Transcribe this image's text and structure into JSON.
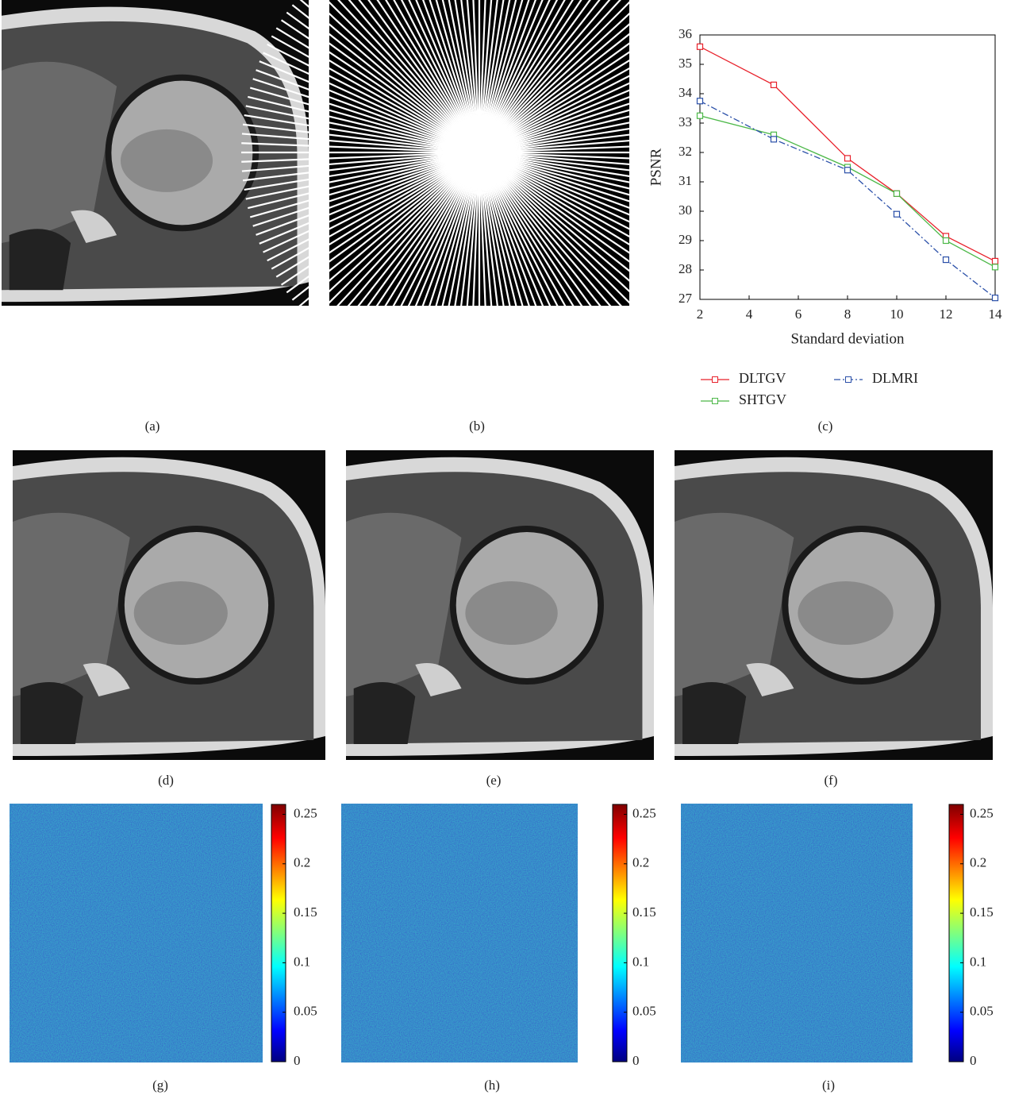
{
  "panel_labels": [
    "(a)",
    "(b)",
    "(c)",
    "(d)",
    "(e)",
    "(f)",
    "(g)",
    "(h)",
    "(i)"
  ],
  "chart_data": {
    "type": "line",
    "xlabel": "Standard deviation",
    "ylabel": "PSNR",
    "x": [
      2,
      5,
      8,
      10,
      12,
      14
    ],
    "series": [
      {
        "name": "DLTGV",
        "color": "#e8202a",
        "linestyle": "solid",
        "values": [
          35.6,
          34.3,
          31.8,
          30.6,
          29.15,
          28.3
        ]
      },
      {
        "name": "SHTGV",
        "color": "#4cb848",
        "linestyle": "solid",
        "values": [
          33.25,
          32.6,
          31.5,
          30.6,
          29.0,
          28.1
        ]
      },
      {
        "name": "DLMRI",
        "color": "#2a4fa8",
        "linestyle": "dashdot",
        "values": [
          33.75,
          32.45,
          31.4,
          29.9,
          28.35,
          27.05
        ]
      }
    ],
    "xlim": [
      2,
      14
    ],
    "xticks": [
      2,
      4,
      6,
      8,
      10,
      12,
      14
    ],
    "ylim": [
      27,
      36
    ],
    "yticks": [
      27,
      28,
      29,
      30,
      31,
      32,
      33,
      34,
      35,
      36
    ],
    "marker": "square",
    "legend": "bottom"
  },
  "colorbar": {
    "clim": [
      0,
      0.26
    ],
    "ticks": [
      0,
      0.05,
      0.1,
      0.15,
      0.2,
      0.25
    ]
  }
}
